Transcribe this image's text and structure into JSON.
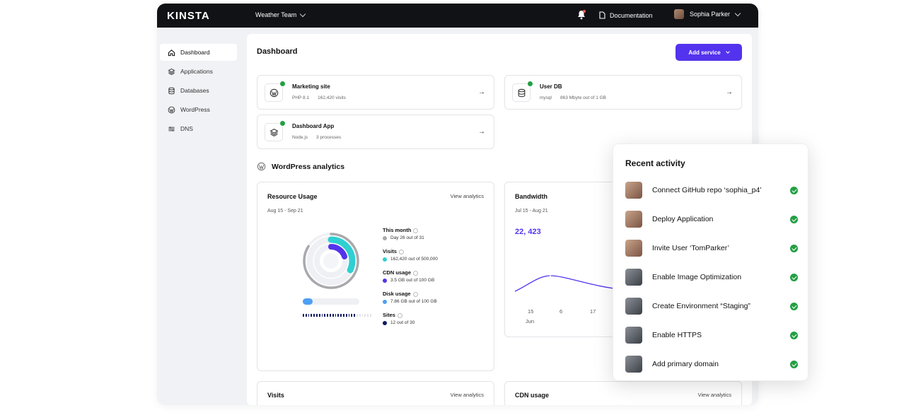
{
  "topbar": {
    "logo": "KINSTA",
    "team": "Weather Team",
    "documentation": "Documentation",
    "user_name": "Sophia Parker"
  },
  "sidebar": {
    "items": [
      {
        "label": "Dashboard",
        "icon": "home-icon",
        "active": true
      },
      {
        "label": "Applications",
        "icon": "layers-icon"
      },
      {
        "label": "Databases",
        "icon": "database-icon"
      },
      {
        "label": "WordPress",
        "icon": "wordpress-icon"
      },
      {
        "label": "DNS",
        "icon": "dns-icon"
      }
    ]
  },
  "main": {
    "title": "Dashboard",
    "add_service": "Add service",
    "services": [
      {
        "name": "Marketing site",
        "meta1": "PHP 8.1",
        "meta2": "162,420 visits",
        "icon": "wordpress-icon"
      },
      {
        "name": "User DB",
        "meta1": "mysql",
        "meta2": "863 Mbyte out of 1 GB",
        "icon": "database-icon"
      },
      {
        "name": "Dashboard App",
        "meta1": "Node.js",
        "meta2": "3 processes",
        "icon": "layers-icon"
      }
    ],
    "wp_analytics_title": "WordPress analytics",
    "resource_usage": {
      "title": "Resource Usage",
      "link": "View analytics",
      "date_range": "Aug 15 - Sep 21",
      "legend": [
        {
          "heading": "This month",
          "detail": "Day 26 out of 31",
          "color": "#a9a9ad",
          "fraction": 0.84
        },
        {
          "heading": "Visits",
          "detail": "162,420 out of 500,000",
          "color": "#2fd0d2",
          "fraction": 0.32
        },
        {
          "heading": "CDN usage",
          "detail": "3.5 GB out of 100 GB",
          "color": "#5333ed",
          "fraction": 0.035
        },
        {
          "heading": "Disk usage",
          "detail": "7.86 GB out of 100 GB",
          "color": "#4e9ff5",
          "fraction": 0.08
        },
        {
          "heading": "Sites",
          "detail": "12 out of 30",
          "color": "#0e1a63",
          "fraction": 0.4
        }
      ]
    },
    "bandwidth": {
      "title": "Bandwidth",
      "date_range": "Jul 15 - Aug 21",
      "value": "22, 423",
      "x_ticks": [
        "15",
        "6",
        "17"
      ],
      "month": "Jun"
    },
    "visits_card": {
      "title": "Visits",
      "link": "View analytics"
    },
    "cdn_card": {
      "title": "CDN usage",
      "link": "View analytics"
    }
  },
  "recent_activity": {
    "title": "Recent activity",
    "items": [
      {
        "label": "Connect GitHub repo ‘sophia_p4’",
        "avatar": "female"
      },
      {
        "label": "Deploy Application",
        "avatar": "female"
      },
      {
        "label": "Invite User ‘TomParker’",
        "avatar": "female"
      },
      {
        "label": "Enable Image Optimization",
        "avatar": "male"
      },
      {
        "label": "Create Environment “Staging”",
        "avatar": "male"
      },
      {
        "label": "Enable HTTPS",
        "avatar": "male"
      },
      {
        "label": "Add primary domain",
        "avatar": "male"
      }
    ]
  },
  "colors": {
    "accent": "#5333ed",
    "success": "#22a043",
    "topbar": "#111216"
  }
}
